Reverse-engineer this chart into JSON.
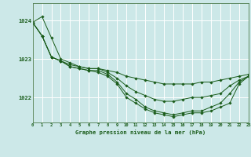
{
  "title": "Graphe pression niveau de la mer (hPa)",
  "bg_color": "#cce8e8",
  "grid_color": "#ffffff",
  "line_color": "#1a5c1a",
  "hours": [
    0,
    1,
    2,
    3,
    4,
    5,
    6,
    7,
    8,
    9,
    10,
    11,
    12,
    13,
    14,
    15,
    16,
    17,
    18,
    19,
    20,
    21,
    22,
    23
  ],
  "series1": [
    1023.95,
    1024.1,
    1023.55,
    1023.0,
    1022.9,
    1022.8,
    1022.75,
    1022.75,
    1022.7,
    1022.65,
    1022.55,
    1022.5,
    1022.45,
    1022.4,
    1022.35,
    1022.35,
    1022.35,
    1022.35,
    1022.4,
    1022.4,
    1022.45,
    1022.5,
    1022.55,
    1022.6
  ],
  "series2": [
    1023.95,
    1023.6,
    1023.05,
    1022.95,
    1022.85,
    1022.8,
    1022.75,
    1022.75,
    1022.65,
    1022.5,
    1022.3,
    1022.15,
    1022.05,
    1021.95,
    1021.9,
    1021.9,
    1021.95,
    1022.0,
    1022.0,
    1022.05,
    1022.1,
    1022.3,
    1022.45,
    1022.55
  ],
  "series3": [
    1023.95,
    1023.6,
    1023.05,
    1022.95,
    1022.8,
    1022.75,
    1022.7,
    1022.7,
    1022.6,
    1022.4,
    1022.1,
    1021.95,
    1021.75,
    1021.65,
    1021.6,
    1021.55,
    1021.6,
    1021.65,
    1021.65,
    1021.75,
    1021.85,
    1022.1,
    1022.4,
    1022.55
  ],
  "series4": [
    1023.95,
    1023.6,
    1023.05,
    1022.95,
    1022.8,
    1022.75,
    1022.7,
    1022.65,
    1022.55,
    1022.35,
    1022.0,
    1021.85,
    1021.7,
    1021.6,
    1021.55,
    1021.5,
    1021.55,
    1021.6,
    1021.6,
    1021.65,
    1021.75,
    1021.85,
    1022.35,
    1022.55
  ],
  "yticks": [
    1022,
    1023,
    1024
  ],
  "ylim": [
    1021.35,
    1024.45
  ],
  "xlim": [
    0,
    23
  ]
}
